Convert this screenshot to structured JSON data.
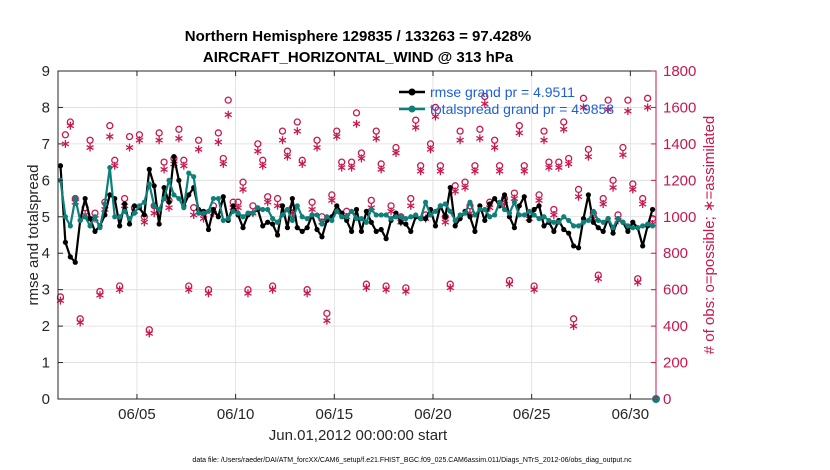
{
  "chart_data": {
    "type": "line",
    "title_line1": "Northern Hemisphere 129835 / 133263 = 97.428%",
    "title_line2": "AIRCRAFT_HORIZONTAL_WIND @ 313 hPa",
    "xlabel": "Jun.01,2012 00:00:00 start",
    "ylabel_left": "rmse and totalspread",
    "ylabel_right": "# of obs: o=possible; ∗=assimilated",
    "footer": "data file: /Users/raeder/DAI/ATM_forcXX/CAM6_setup/f.e21.FHIST_BGC.f09_025.CAM6assim.011/Diags_NTrS_2012-06/obs_diag_output.nc",
    "xlim": [
      1.0,
      31.3
    ],
    "ylim_left": [
      0,
      9
    ],
    "ylim_right": [
      0,
      1800
    ],
    "x_ticks": [
      5,
      10,
      15,
      20,
      25,
      30
    ],
    "x_tick_labels": [
      "06/05",
      "06/10",
      "06/15",
      "06/20",
      "06/25",
      "06/30"
    ],
    "y_ticks_left": [
      0,
      1,
      2,
      3,
      4,
      5,
      6,
      7,
      8,
      9
    ],
    "y_ticks_right": [
      0,
      200,
      400,
      600,
      800,
      1000,
      1200,
      1400,
      1600,
      1800
    ],
    "colors": {
      "rmse": "#000000",
      "spread": "#0f7f7a",
      "obs": "#c8174f",
      "legend_text": "#1f5fd6"
    },
    "series": [
      {
        "name": "rmse grand pr = 4.9511",
        "axis": "left",
        "color": "#000000",
        "x": [
          1.125,
          1.375,
          1.625,
          1.875,
          2.125,
          2.375,
          2.625,
          2.875,
          3.125,
          3.375,
          3.625,
          3.875,
          4.125,
          4.375,
          4.625,
          4.875,
          5.125,
          5.375,
          5.625,
          5.875,
          6.125,
          6.375,
          6.625,
          6.875,
          7.125,
          7.375,
          7.625,
          7.875,
          8.125,
          8.375,
          8.625,
          8.875,
          9.125,
          9.375,
          9.625,
          9.875,
          10.125,
          10.375,
          10.625,
          10.875,
          11.125,
          11.375,
          11.625,
          11.875,
          12.125,
          12.375,
          12.625,
          12.875,
          13.125,
          13.375,
          13.625,
          13.875,
          14.125,
          14.375,
          14.625,
          14.875,
          15.125,
          15.375,
          15.625,
          15.875,
          16.125,
          16.375,
          16.625,
          16.875,
          17.125,
          17.375,
          17.625,
          17.875,
          18.125,
          18.375,
          18.625,
          18.875,
          19.125,
          19.375,
          19.625,
          19.875,
          20.125,
          20.375,
          20.625,
          20.875,
          21.125,
          21.375,
          21.625,
          21.875,
          22.125,
          22.375,
          22.625,
          22.875,
          23.125,
          23.375,
          23.625,
          23.875,
          24.125,
          24.375,
          24.625,
          24.875,
          25.125,
          25.375,
          25.625,
          25.875,
          26.125,
          26.375,
          26.625,
          26.875,
          27.125,
          27.375,
          27.625,
          27.875,
          28.125,
          28.375,
          28.625,
          28.875,
          29.125,
          29.375,
          29.625,
          29.875,
          30.125,
          30.375,
          30.625,
          30.875,
          31.125
        ],
        "y": [
          6.4,
          4.3,
          3.9,
          3.75,
          4.9,
          5.5,
          4.95,
          4.6,
          4.75,
          5.05,
          5.6,
          5.5,
          4.75,
          5.35,
          4.8,
          5.3,
          5.25,
          5.05,
          6.3,
          5.85,
          4.8,
          5.8,
          5.4,
          6.65,
          6.0,
          5.3,
          5.6,
          5.8,
          5.2,
          5.15,
          4.65,
          5.2,
          5.0,
          5.55,
          4.9,
          5.3,
          5.05,
          4.7,
          5.05,
          5.1,
          5.2,
          4.75,
          4.85,
          4.8,
          4.5,
          5.3,
          4.7,
          5.5,
          4.7,
          4.6,
          4.7,
          5.05,
          4.65,
          4.45,
          4.9,
          5.0,
          5.3,
          5.1,
          4.9,
          4.6,
          5.2,
          4.6,
          5.15,
          4.85,
          4.6,
          4.65,
          4.4,
          4.9,
          5.1,
          4.85,
          4.8,
          4.6,
          5.0,
          4.95,
          4.95,
          5.2,
          4.75,
          5.3,
          5.0,
          5.8,
          4.75,
          4.95,
          5.15,
          5.0,
          4.6,
          5.3,
          4.9,
          5.35,
          5.5,
          5.3,
          5.6,
          5.0,
          4.7,
          5.3,
          5.55,
          4.9,
          5.2,
          5.3,
          4.75,
          4.85,
          4.6,
          4.9,
          4.65,
          4.55,
          4.2,
          4.15,
          4.95,
          5.6,
          4.85,
          4.7,
          4.6,
          4.95,
          4.55,
          4.95,
          4.85,
          4.6,
          4.85,
          4.7,
          4.2,
          4.75,
          5.2
        ]
      },
      {
        "name": "totalspread grand pr = 4.9858",
        "axis": "left",
        "color": "#0f7f7a",
        "x": [
          1.125,
          1.375,
          1.625,
          1.875,
          2.125,
          2.375,
          2.625,
          2.875,
          3.125,
          3.375,
          3.625,
          3.875,
          4.125,
          4.375,
          4.625,
          4.875,
          5.125,
          5.375,
          5.625,
          5.875,
          6.125,
          6.375,
          6.625,
          6.875,
          7.125,
          7.375,
          7.625,
          7.875,
          8.125,
          8.375,
          8.625,
          8.875,
          9.125,
          9.375,
          9.625,
          9.875,
          10.125,
          10.375,
          10.625,
          10.875,
          11.125,
          11.375,
          11.625,
          11.875,
          12.125,
          12.375,
          12.625,
          12.875,
          13.125,
          13.375,
          13.625,
          13.875,
          14.125,
          14.375,
          14.625,
          14.875,
          15.125,
          15.375,
          15.625,
          15.875,
          16.125,
          16.375,
          16.625,
          16.875,
          17.125,
          17.375,
          17.625,
          17.875,
          18.125,
          18.375,
          18.625,
          18.875,
          19.125,
          19.375,
          19.625,
          19.875,
          20.125,
          20.375,
          20.625,
          20.875,
          21.125,
          21.375,
          21.625,
          21.875,
          22.125,
          22.375,
          22.625,
          22.875,
          23.125,
          23.375,
          23.625,
          23.875,
          24.125,
          24.375,
          24.625,
          24.875,
          25.125,
          25.375,
          25.625,
          25.875,
          26.125,
          26.375,
          26.625,
          26.875,
          27.125,
          27.375,
          27.625,
          27.875,
          28.125,
          28.375,
          28.625,
          28.875,
          29.125,
          29.375,
          29.625,
          29.875,
          30.125,
          30.375,
          30.625,
          30.875,
          31.125
        ],
        "y": [
          6.0,
          5.0,
          4.75,
          5.5,
          4.9,
          5.0,
          4.75,
          5.0,
          4.7,
          5.35,
          6.35,
          5.0,
          5.0,
          5.15,
          4.95,
          5.1,
          5.3,
          5.4,
          5.9,
          5.3,
          5.2,
          5.5,
          6.0,
          5.6,
          5.5,
          5.25,
          6.2,
          6.1,
          5.1,
          5.1,
          5.15,
          5.5,
          5.5,
          4.9,
          4.95,
          5.15,
          5.1,
          5.0,
          5.1,
          5.1,
          5.25,
          5.2,
          5.2,
          4.95,
          4.85,
          5.05,
          5.2,
          4.9,
          5.3,
          5.0,
          4.95,
          5.05,
          5.05,
          4.8,
          5.0,
          4.9,
          5.15,
          5.0,
          5.0,
          5.15,
          4.95,
          4.95,
          4.85,
          5.2,
          5.05,
          5.05,
          5.05,
          4.95,
          5.0,
          5.0,
          4.95,
          5.0,
          5.05,
          4.95,
          5.4,
          5.05,
          5.15,
          5.3,
          5.35,
          5.15,
          4.9,
          5.05,
          5.1,
          5.4,
          5.05,
          5.2,
          5.2,
          5.0,
          5.05,
          5.4,
          5.2,
          5.1,
          5.4,
          5.05,
          5.05,
          5.15,
          5.05,
          4.95,
          5.0,
          4.9,
          4.85,
          4.85,
          5.0,
          4.9,
          4.75,
          4.75,
          4.85,
          4.9,
          5.15,
          4.9,
          4.85,
          4.95,
          4.7,
          4.95,
          4.85,
          4.75,
          4.7,
          4.7,
          4.75,
          4.8,
          4.75
        ]
      },
      {
        "name": "possible",
        "axis": "right",
        "color": "#c8174f",
        "marker": "o",
        "x": [
          1.125,
          1.375,
          1.625,
          1.875,
          2.125,
          2.375,
          2.625,
          2.875,
          3.125,
          3.375,
          3.625,
          3.875,
          4.125,
          4.375,
          4.625,
          4.875,
          5.125,
          5.375,
          5.625,
          5.875,
          6.125,
          6.375,
          6.625,
          6.875,
          7.125,
          7.375,
          7.625,
          7.875,
          8.125,
          8.375,
          8.625,
          8.875,
          9.125,
          9.375,
          9.625,
          9.875,
          10.125,
          10.375,
          10.625,
          10.875,
          11.125,
          11.375,
          11.625,
          11.875,
          12.125,
          12.375,
          12.625,
          12.875,
          13.125,
          13.375,
          13.625,
          13.875,
          14.125,
          14.375,
          14.625,
          14.875,
          15.125,
          15.375,
          15.625,
          15.875,
          16.125,
          16.375,
          16.625,
          16.875,
          17.125,
          17.375,
          17.625,
          17.875,
          18.125,
          18.375,
          18.625,
          18.875,
          19.125,
          19.375,
          19.625,
          19.875,
          20.125,
          20.375,
          20.625,
          20.875,
          21.125,
          21.375,
          21.625,
          21.875,
          22.125,
          22.375,
          22.625,
          22.875,
          23.125,
          23.375,
          23.625,
          23.875,
          24.125,
          24.375,
          24.625,
          24.875,
          25.125,
          25.375,
          25.625,
          25.875,
          26.125,
          26.375,
          26.625,
          26.875,
          27.125,
          27.375,
          27.625,
          27.875,
          28.125,
          28.375,
          28.625,
          28.875,
          29.125,
          29.375,
          29.625,
          29.875,
          30.125,
          30.375,
          30.625,
          30.875,
          31.125
        ],
        "y": [
          560,
          1450,
          1520,
          1100,
          440,
          1050,
          1420,
          1020,
          590,
          1080,
          1500,
          1310,
          620,
          1100,
          1440,
          1050,
          1450,
          1000,
          380,
          1060,
          1460,
          1300,
          1090,
          1320,
          1480,
          1310,
          620,
          1050,
          1420,
          1020,
          600,
          1060,
          1460,
          1320,
          1640,
          1080,
          1080,
          1190,
          600,
          1060,
          1400,
          1310,
          1110,
          620,
          1100,
          1470,
          1360,
          1050,
          1520,
          1310,
          600,
          1080,
          1420,
          1000,
          470,
          1120,
          1470,
          1300,
          1030,
          1300,
          1570,
          1350,
          630,
          1090,
          1470,
          1290,
          620,
          1060,
          1380,
          1000,
          610,
          1100,
          1530,
          1280,
          1010,
          1400,
          1600,
          1280,
          1000,
          630,
          1170,
          1470,
          1190,
          1060,
          1280,
          1480,
          1660,
          1080,
          1420,
          1280,
          1100,
          650,
          1130,
          1500,
          1280,
          1020,
          620,
          1120,
          1470,
          1300,
          1040,
          1300,
          1520,
          1320,
          440,
          1150,
          1650,
          1370,
          1020,
          680,
          1100,
          1640,
          1200,
          1010,
          1380,
          1640,
          1180,
          660,
          1100,
          1650,
          990
        ]
      },
      {
        "name": "assimilated",
        "axis": "right",
        "color": "#c8174f",
        "marker": "*",
        "x": [
          1.125,
          1.375,
          1.625,
          1.875,
          2.125,
          2.375,
          2.625,
          2.875,
          3.125,
          3.375,
          3.625,
          3.875,
          4.125,
          4.375,
          4.625,
          4.875,
          5.125,
          5.375,
          5.625,
          5.875,
          6.125,
          6.375,
          6.625,
          6.875,
          7.125,
          7.375,
          7.625,
          7.875,
          8.125,
          8.375,
          8.625,
          8.875,
          9.125,
          9.375,
          9.625,
          9.875,
          10.125,
          10.375,
          10.625,
          10.875,
          11.125,
          11.375,
          11.625,
          11.875,
          12.125,
          12.375,
          12.625,
          12.875,
          13.125,
          13.375,
          13.625,
          13.875,
          14.125,
          14.375,
          14.625,
          14.875,
          15.125,
          15.375,
          15.625,
          15.875,
          16.125,
          16.375,
          16.625,
          16.875,
          17.125,
          17.375,
          17.625,
          17.875,
          18.125,
          18.375,
          18.625,
          18.875,
          19.125,
          19.375,
          19.625,
          19.875,
          20.125,
          20.375,
          20.625,
          20.875,
          21.125,
          21.375,
          21.625,
          21.875,
          22.125,
          22.375,
          22.625,
          22.875,
          23.125,
          23.375,
          23.625,
          23.875,
          24.125,
          24.375,
          24.625,
          24.875,
          25.125,
          25.375,
          25.625,
          25.875,
          26.125,
          26.375,
          26.625,
          26.875,
          27.125,
          27.375,
          27.625,
          27.875,
          28.125,
          28.375,
          28.625,
          28.875,
          29.125,
          29.375,
          29.625,
          29.875,
          30.125,
          30.375,
          30.625,
          30.875,
          31.125
        ],
        "y": [
          540,
          1400,
          1500,
          1080,
          420,
          1010,
          1380,
          990,
          570,
          1040,
          1440,
          1280,
          600,
          1060,
          1380,
          1030,
          1420,
          970,
          360,
          1020,
          1420,
          1260,
          1050,
          1290,
          1430,
          1280,
          600,
          1010,
          1370,
          990,
          580,
          1020,
          1410,
          1290,
          1560,
          1050,
          1050,
          1150,
          580,
          1020,
          1360,
          1280,
          1080,
          600,
          1060,
          1420,
          1330,
          1020,
          1470,
          1290,
          580,
          1040,
          1380,
          970,
          430,
          1090,
          1440,
          1270,
          1000,
          1270,
          1510,
          1320,
          610,
          1050,
          1430,
          1260,
          600,
          1030,
          1350,
          970,
          590,
          1060,
          1490,
          1250,
          990,
          1370,
          1550,
          1250,
          970,
          610,
          1140,
          1420,
          1160,
          1020,
          1250,
          1430,
          1620,
          1050,
          1380,
          1250,
          1070,
          630,
          1100,
          1460,
          1250,
          990,
          600,
          1090,
          1420,
          1270,
          1010,
          1270,
          1480,
          1290,
          400,
          1110,
          1600,
          1330,
          990,
          660,
          1070,
          1590,
          1160,
          980,
          1340,
          1580,
          1150,
          640,
          1070,
          1600,
          960
        ]
      }
    ],
    "legend": [
      {
        "label": "rmse grand pr = 4.9511",
        "color": "#000000"
      },
      {
        "label": "totalspread grand pr = 4.9858",
        "color": "#0f7f7a"
      }
    ]
  }
}
